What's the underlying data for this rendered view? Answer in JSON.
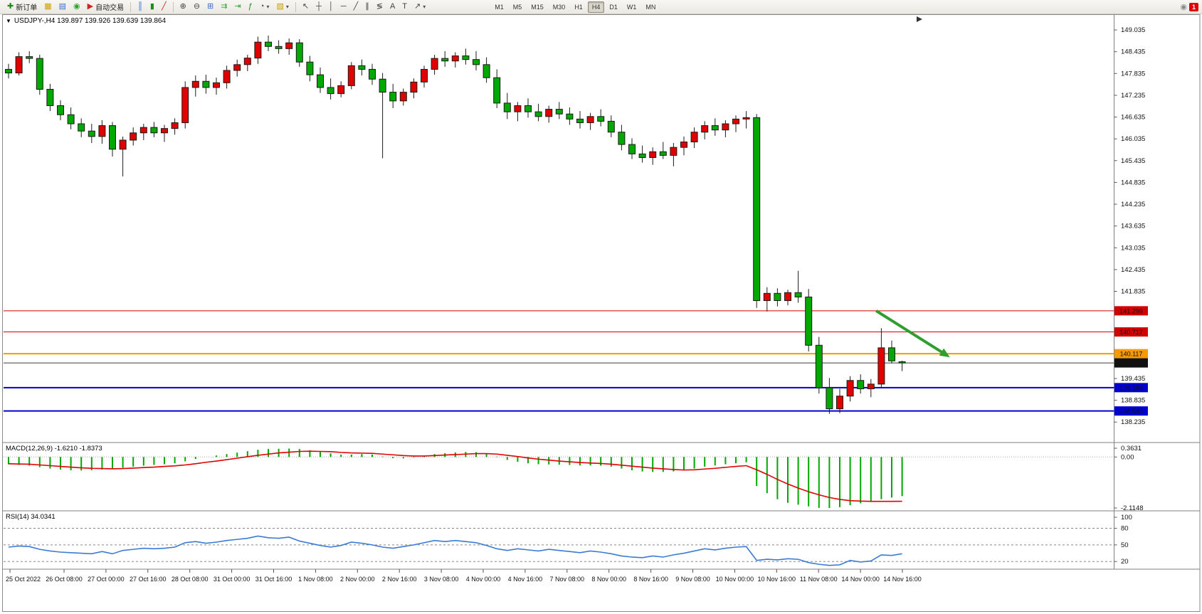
{
  "toolbar": {
    "groups": [
      {
        "items": [
          {
            "name": "new-order-button",
            "icon": "new-order-icon",
            "glyph": "✚",
            "color": "#1a8c1a",
            "label": "新订单"
          },
          {
            "name": "charts-profile-button",
            "icon": "charts-profile-icon",
            "glyph": "▦",
            "color": "#c8a000"
          },
          {
            "name": "market-watch-button",
            "icon": "market-watch-icon",
            "glyph": "▤",
            "color": "#3a6fc8"
          },
          {
            "name": "alerts-button",
            "icon": "alerts-icon",
            "glyph": "◉",
            "color": "#2fa12f"
          },
          {
            "name": "autotrade-button",
            "icon": "autotrade-icon",
            "glyph": "▶",
            "color": "#d22222",
            "label": "自动交易"
          }
        ]
      },
      {
        "items": [
          {
            "name": "bar-chart-button",
            "icon": "bar-chart-icon",
            "glyph": "║",
            "color": "#3a6fc8"
          },
          {
            "name": "candlestick-chart-button",
            "icon": "candlestick-icon",
            "glyph": "▮",
            "color": "#1a8c1a"
          },
          {
            "name": "line-chart-button",
            "icon": "line-chart-icon",
            "glyph": "╱",
            "color": "#d22222"
          }
        ]
      },
      {
        "items": [
          {
            "name": "zoom-in-button",
            "icon": "zoom-in-icon",
            "glyph": "⊕",
            "color": "#444444"
          },
          {
            "name": "zoom-out-button",
            "icon": "zoom-out-icon",
            "glyph": "⊖",
            "color": "#444444"
          },
          {
            "name": "tile-windows-button",
            "icon": "tile-windows-icon",
            "glyph": "⊞",
            "color": "#3a6fc8"
          },
          {
            "name": "auto-scroll-button",
            "icon": "auto-scroll-icon",
            "glyph": "⇉",
            "color": "#2fa12f"
          },
          {
            "name": "chart-shift-button",
            "icon": "chart-shift-icon",
            "glyph": "⇥",
            "color": "#2fa12f"
          },
          {
            "name": "indicators-button",
            "icon": "indicators-icon",
            "glyph": "ƒ",
            "color": "#1a8c1a"
          },
          {
            "name": "periods-dropdown",
            "icon": "clock-icon",
            "glyph": "◔",
            "color": "#444444",
            "caret": true
          },
          {
            "name": "templates-dropdown",
            "icon": "template-icon",
            "glyph": "▧",
            "color": "#c8a000",
            "caret": true
          }
        ]
      },
      {
        "items": [
          {
            "name": "cursor-button",
            "icon": "cursor-icon",
            "glyph": "↖",
            "color": "#444444"
          },
          {
            "name": "crosshair-button",
            "icon": "crosshair-icon",
            "glyph": "┼",
            "color": "#444444"
          },
          {
            "name": "vertical-line-button",
            "icon": "vertical-line-icon",
            "glyph": "│",
            "color": "#444444"
          },
          {
            "name": "horizontal-line-button",
            "icon": "horizontal-line-icon",
            "glyph": "─",
            "color": "#444444"
          },
          {
            "name": "trendline-button",
            "icon": "trendline-icon",
            "glyph": "╱",
            "color": "#444444"
          },
          {
            "name": "channel-button",
            "icon": "channel-icon",
            "glyph": "∥",
            "color": "#444444"
          },
          {
            "name": "fibonacci-button",
            "icon": "fibonacci-icon",
            "glyph": "≶",
            "color": "#444444"
          },
          {
            "name": "text-button",
            "icon": "text-icon",
            "glyph": "A",
            "color": "#444444"
          },
          {
            "name": "label-button",
            "icon": "label-icon",
            "glyph": "T",
            "color": "#444444"
          },
          {
            "name": "arrows-dropdown",
            "icon": "arrow-tools-icon",
            "glyph": "↗",
            "color": "#444444",
            "caret": true
          }
        ]
      }
    ],
    "timeframes": [
      "M1",
      "M5",
      "M15",
      "M30",
      "H1",
      "H4",
      "D1",
      "W1",
      "MN"
    ],
    "active_timeframe": "H4",
    "notification_badge": "1"
  },
  "chart_data": {
    "type": "candlestick",
    "symbol": "USDJPY-",
    "timeframe": "H4",
    "header": "USDJPY-,H4 139.897 139.926 139.639 139.864",
    "current_ohlc": {
      "open": "139.897",
      "high": "139.926",
      "low": "139.639",
      "close": "139.864"
    },
    "price_range": {
      "max": 149.35,
      "min": 137.71
    },
    "price_axis_labels": [
      "149.035",
      "148.435",
      "147.835",
      "147.235",
      "146.635",
      "146.035",
      "145.435",
      "144.835",
      "144.235",
      "143.635",
      "143.035",
      "142.435",
      "141.835",
      "139.435",
      "138.835",
      "138.235"
    ],
    "colors": {
      "bull": "#e00000",
      "bear": "#00a800",
      "wick": "#1c1c1c",
      "grid_sep": "#808080",
      "macd_bar": "#00a800",
      "macd_signal": "#e00000",
      "rsi_line": "#3a7bd5",
      "arrow": "#2f9e2f"
    },
    "candles": [
      [
        147.95,
        148.1,
        147.7,
        147.85
      ],
      [
        147.85,
        148.42,
        147.78,
        148.3
      ],
      [
        148.3,
        148.45,
        148.12,
        148.25
      ],
      [
        148.25,
        148.35,
        147.25,
        147.4
      ],
      [
        147.4,
        147.55,
        146.8,
        146.95
      ],
      [
        146.95,
        147.1,
        146.55,
        146.7
      ],
      [
        146.7,
        146.9,
        146.3,
        146.45
      ],
      [
        146.45,
        146.6,
        146.08,
        146.25
      ],
      [
        146.25,
        146.45,
        145.92,
        146.1
      ],
      [
        146.1,
        146.55,
        145.9,
        146.4
      ],
      [
        146.4,
        146.5,
        145.55,
        145.75
      ],
      [
        145.75,
        146.1,
        145.0,
        146.0
      ],
      [
        146.0,
        146.35,
        145.85,
        146.2
      ],
      [
        146.2,
        146.45,
        146.0,
        146.35
      ],
      [
        146.35,
        146.5,
        146.08,
        146.2
      ],
      [
        146.2,
        146.42,
        145.95,
        146.32
      ],
      [
        146.32,
        146.6,
        146.15,
        146.48
      ],
      [
        146.48,
        147.62,
        146.32,
        147.45
      ],
      [
        147.45,
        147.78,
        147.2,
        147.62
      ],
      [
        147.62,
        147.8,
        147.28,
        147.45
      ],
      [
        147.45,
        147.72,
        147.25,
        147.58
      ],
      [
        147.58,
        148.05,
        147.42,
        147.92
      ],
      [
        147.92,
        148.22,
        147.75,
        148.08
      ],
      [
        148.08,
        148.35,
        147.9,
        148.26
      ],
      [
        148.26,
        148.85,
        148.1,
        148.7
      ],
      [
        148.7,
        148.88,
        148.45,
        148.58
      ],
      [
        148.58,
        148.75,
        148.38,
        148.52
      ],
      [
        148.52,
        148.8,
        148.35,
        148.68
      ],
      [
        148.68,
        148.78,
        148.02,
        148.15
      ],
      [
        148.15,
        148.32,
        147.62,
        147.8
      ],
      [
        147.8,
        148.0,
        147.3,
        147.45
      ],
      [
        147.45,
        147.7,
        147.12,
        147.28
      ],
      [
        147.28,
        147.62,
        147.18,
        147.5
      ],
      [
        147.5,
        148.15,
        147.4,
        148.05
      ],
      [
        148.05,
        148.22,
        147.78,
        147.95
      ],
      [
        147.95,
        148.1,
        147.52,
        147.68
      ],
      [
        147.68,
        147.85,
        145.5,
        147.32
      ],
      [
        147.32,
        147.55,
        146.88,
        147.08
      ],
      [
        147.08,
        147.42,
        146.95,
        147.32
      ],
      [
        147.32,
        147.7,
        147.15,
        147.6
      ],
      [
        147.6,
        148.05,
        147.45,
        147.95
      ],
      [
        147.95,
        148.35,
        147.8,
        148.25
      ],
      [
        148.25,
        148.45,
        148.02,
        148.18
      ],
      [
        148.18,
        148.42,
        148.0,
        148.32
      ],
      [
        148.32,
        148.52,
        148.08,
        148.22
      ],
      [
        148.22,
        148.45,
        147.92,
        148.08
      ],
      [
        148.08,
        148.28,
        147.58,
        147.72
      ],
      [
        147.72,
        147.95,
        146.88,
        147.02
      ],
      [
        147.02,
        147.3,
        146.58,
        146.78
      ],
      [
        146.78,
        147.05,
        146.52,
        146.95
      ],
      [
        146.95,
        147.15,
        146.62,
        146.78
      ],
      [
        146.78,
        147.0,
        146.52,
        146.65
      ],
      [
        146.65,
        146.95,
        146.48,
        146.85
      ],
      [
        146.85,
        147.05,
        146.58,
        146.72
      ],
      [
        146.72,
        146.9,
        146.42,
        146.58
      ],
      [
        146.58,
        146.8,
        146.32,
        146.48
      ],
      [
        146.48,
        146.75,
        146.28,
        146.65
      ],
      [
        146.65,
        146.85,
        146.38,
        146.52
      ],
      [
        146.52,
        146.68,
        146.08,
        146.22
      ],
      [
        146.22,
        146.42,
        145.72,
        145.88
      ],
      [
        145.88,
        146.05,
        145.48,
        145.62
      ],
      [
        145.62,
        145.85,
        145.38,
        145.52
      ],
      [
        145.52,
        145.8,
        145.32,
        145.68
      ],
      [
        145.68,
        145.95,
        145.48,
        145.58
      ],
      [
        145.58,
        145.92,
        145.28,
        145.8
      ],
      [
        145.8,
        146.1,
        145.58,
        145.95
      ],
      [
        145.95,
        146.35,
        145.78,
        146.22
      ],
      [
        146.22,
        146.52,
        146.02,
        146.4
      ],
      [
        146.4,
        146.6,
        146.12,
        146.28
      ],
      [
        146.28,
        146.55,
        146.08,
        146.45
      ],
      [
        146.45,
        146.68,
        146.22,
        146.58
      ],
      [
        146.58,
        146.8,
        146.32,
        146.62
      ],
      [
        146.62,
        146.72,
        141.38,
        141.58
      ],
      [
        141.58,
        141.95,
        141.28,
        141.78
      ],
      [
        141.78,
        141.92,
        141.42,
        141.58
      ],
      [
        141.58,
        141.88,
        141.45,
        141.8
      ],
      [
        141.8,
        142.4,
        141.52,
        141.68
      ],
      [
        141.68,
        141.9,
        140.18,
        140.35
      ],
      [
        140.35,
        140.58,
        139.02,
        139.18
      ],
      [
        139.18,
        139.45,
        138.46,
        138.6
      ],
      [
        138.6,
        139.15,
        138.48,
        138.95
      ],
      [
        138.95,
        139.5,
        138.8,
        139.38
      ],
      [
        139.38,
        139.55,
        139.02,
        139.15
      ],
      [
        139.15,
        139.42,
        138.92,
        139.28
      ],
      [
        139.28,
        140.82,
        139.18,
        140.28
      ],
      [
        140.28,
        140.48,
        139.85,
        139.92
      ],
      [
        139.897,
        139.926,
        139.639,
        139.864
      ]
    ],
    "hlines": [
      {
        "price": 141.299,
        "label": "141.299",
        "color": "#d20000",
        "tag_bg": "#d20000",
        "width": 1
      },
      {
        "price": 140.717,
        "label": "140.717",
        "color": "#d20000",
        "tag_bg": "#d20000",
        "width": 1
      },
      {
        "price": 140.117,
        "label": "140.117",
        "color": "#f59a00",
        "tag_bg": "#f59a00",
        "width": 2
      },
      {
        "price": 139.864,
        "label": "139.864",
        "color": "#3c3c3c",
        "tag_bg": "#111111",
        "width": 1
      },
      {
        "price": 139.183,
        "label": "139.183",
        "color": "#0000d2",
        "tag_bg": "#0000d2",
        "width": 2
      },
      {
        "price": 138.54,
        "label": "138.540",
        "color": "#0000d2",
        "tag_bg": "#0000d2",
        "width": 2
      }
    ],
    "trend_arrow": {
      "from": {
        "t": 83.5,
        "price": 141.3
      },
      "to": {
        "t": 90.6,
        "price": 140.02
      },
      "color": "#2f9e2f",
      "width": 4
    },
    "macd": {
      "label": "MACD(12,26,9) -1.6210 -1.8373",
      "axis_labels": [
        "0.3631",
        "0.00",
        "-2.1148"
      ],
      "range": {
        "max": 0.3631,
        "min": -2.1148
      },
      "values": [
        -0.3,
        -0.33,
        -0.36,
        -0.42,
        -0.48,
        -0.52,
        -0.55,
        -0.56,
        -0.55,
        -0.52,
        -0.5,
        -0.45,
        -0.4,
        -0.36,
        -0.33,
        -0.3,
        -0.26,
        -0.18,
        -0.08,
        0.0,
        0.06,
        0.12,
        0.18,
        0.24,
        0.3,
        0.33,
        0.34,
        0.35,
        0.33,
        0.28,
        0.22,
        0.15,
        0.1,
        0.1,
        0.12,
        0.1,
        0.02,
        -0.05,
        -0.06,
        -0.02,
        0.04,
        0.12,
        0.16,
        0.19,
        0.21,
        0.2,
        0.14,
        0.02,
        -0.12,
        -0.2,
        -0.26,
        -0.3,
        -0.31,
        -0.32,
        -0.33,
        -0.35,
        -0.35,
        -0.36,
        -0.4,
        -0.48,
        -0.55,
        -0.6,
        -0.62,
        -0.62,
        -0.6,
        -0.55,
        -0.48,
        -0.4,
        -0.35,
        -0.3,
        -0.26,
        -0.22,
        -1.2,
        -1.5,
        -1.75,
        -1.9,
        -1.98,
        -2.05,
        -2.11,
        -2.1148,
        -2.08,
        -2.0,
        -1.92,
        -1.85,
        -1.75,
        -1.68,
        -1.621
      ],
      "signal": [
        -0.28,
        -0.29,
        -0.3,
        -0.33,
        -0.36,
        -0.39,
        -0.42,
        -0.45,
        -0.47,
        -0.48,
        -0.49,
        -0.48,
        -0.46,
        -0.44,
        -0.42,
        -0.39,
        -0.37,
        -0.33,
        -0.28,
        -0.22,
        -0.17,
        -0.11,
        -0.05,
        0.01,
        0.07,
        0.12,
        0.17,
        0.2,
        0.23,
        0.24,
        0.23,
        0.22,
        0.19,
        0.17,
        0.16,
        0.15,
        0.12,
        0.09,
        0.06,
        0.04,
        0.04,
        0.06,
        0.08,
        0.1,
        0.12,
        0.14,
        0.14,
        0.12,
        0.07,
        0.02,
        -0.04,
        -0.09,
        -0.13,
        -0.17,
        -0.2,
        -0.23,
        -0.25,
        -0.27,
        -0.3,
        -0.34,
        -0.38,
        -0.42,
        -0.46,
        -0.49,
        -0.52,
        -0.54,
        -0.53,
        -0.5,
        -0.47,
        -0.43,
        -0.39,
        -0.36,
        -0.53,
        -0.72,
        -0.93,
        -1.12,
        -1.29,
        -1.44,
        -1.57,
        -1.68,
        -1.76,
        -1.81,
        -1.83,
        -1.84,
        -1.84,
        -1.84,
        -1.8373
      ]
    },
    "rsi": {
      "label": "RSI(14) 34.0341",
      "axis_labels": [
        "100",
        "80",
        "50",
        "20"
      ],
      "levels": [
        80,
        50,
        20
      ],
      "range": {
        "max": 100,
        "min": 10
      },
      "values": [
        46,
        48,
        47,
        42,
        39,
        37,
        36,
        35,
        34,
        38,
        34,
        40,
        42,
        44,
        43,
        44,
        46,
        54,
        56,
        53,
        55,
        58,
        60,
        62,
        66,
        63,
        62,
        64,
        57,
        53,
        49,
        46,
        49,
        55,
        53,
        50,
        46,
        44,
        47,
        50,
        54,
        58,
        56,
        58,
        56,
        54,
        49,
        43,
        40,
        43,
        41,
        39,
        42,
        40,
        38,
        36,
        39,
        37,
        34,
        30,
        28,
        27,
        30,
        28,
        32,
        35,
        39,
        43,
        41,
        44,
        46,
        47,
        22,
        24,
        23,
        25,
        24,
        18,
        15,
        13,
        14,
        22,
        19,
        21,
        32,
        31,
        34
      ]
    },
    "time_axis_labels": [
      "25 Oct 2022",
      "26 Oct 08:00",
      "27 Oct 00:00",
      "27 Oct 16:00",
      "28 Oct 08:00",
      "31 Oct 00:00",
      "31 Oct 16:00",
      "1 Nov 08:00",
      "2 Nov 00:00",
      "2 Nov 16:00",
      "3 Nov 08:00",
      "4 Nov 00:00",
      "4 Nov 16:00",
      "7 Nov 08:00",
      "8 Nov 00:00",
      "8 Nov 16:00",
      "9 Nov 08:00",
      "10 Nov 00:00",
      "10 Nov 16:00",
      "11 Nov 08:00",
      "14 Nov 00:00",
      "14 Nov 16:00"
    ]
  }
}
